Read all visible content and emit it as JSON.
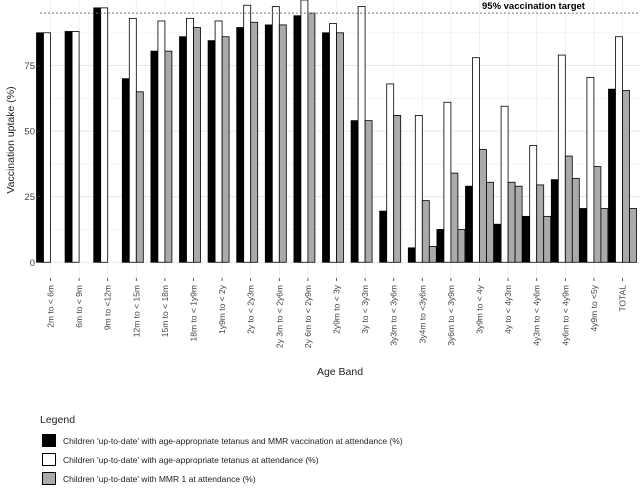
{
  "chart_data": {
    "type": "bar",
    "title": "",
    "xlabel": "Age Band",
    "ylabel": "Vaccination uptake (%)",
    "ylim": [
      0,
      100
    ],
    "yticks": [
      0,
      25,
      50,
      75
    ],
    "grid": true,
    "target": {
      "value": 95,
      "label": "95% vaccination target"
    },
    "categories": [
      "2m to < 6m",
      "6m to < 9m",
      "9m to <12m",
      "12m to < 15m",
      "15m to < 18m",
      "18m to < 1y9m",
      "1y9m to < 2y",
      "2y to < 2y3m",
      "2y 3m to < 2y6m",
      "2y 6m to < 2y9m",
      "2y9m to < 3y",
      "3y to < 3y3m",
      "3y3m to < 3y6m",
      "3y4m to <3y6m",
      "3y6m to < 3y9m",
      "3y9m to < 4y",
      "4y to < 4y3m",
      "4y3m to < 4y6m",
      "4y6m to < 4y9m",
      "4y9m to <5y",
      "TOTAL"
    ],
    "series": [
      {
        "name": "Children 'up-to-date' with age-appropriate tetanus and MMR vaccination at attendance (%)",
        "color": "#000000",
        "values": [
          87.5,
          88,
          97,
          70,
          80.5,
          86,
          84.5,
          89.5,
          90.5,
          94,
          87.5,
          54,
          19.5,
          5.5,
          12.5,
          29,
          14.5,
          17.5,
          31.5,
          20.5,
          66
        ]
      },
      {
        "name": "Children 'up-to-date' with age-appropriate tetanus at attendance (%)",
        "color": "#ffffff",
        "values": [
          87.5,
          88,
          97,
          93,
          92,
          93,
          92,
          98,
          97.5,
          100,
          91,
          97.5,
          68,
          56,
          61,
          78,
          59.5,
          44.5,
          79,
          70.5,
          86
        ]
      },
      {
        "name": "Children 'up-to-date' with MMR 1 at attendance (%)",
        "color": "#aaaaaa",
        "values": [
          null,
          null,
          null,
          65,
          80.5,
          89.5,
          86,
          91.5,
          90.5,
          95,
          87.5,
          54,
          56,
          23.5,
          34,
          43,
          30.5,
          29.5,
          40.5,
          36.5,
          65.5
        ]
      },
      {
        "name": "",
        "color": "#aaaaaa",
        "values": [
          null,
          null,
          null,
          null,
          null,
          null,
          null,
          null,
          null,
          null,
          null,
          null,
          null,
          6,
          12.5,
          30.5,
          29,
          17.5,
          32,
          20.5,
          20.5
        ]
      }
    ]
  },
  "legend": {
    "title": "Legend",
    "items": [
      {
        "label": "Children 'up-to-date' with age-appropriate tetanus and MMR vaccination at attendance (%)",
        "color": "#000000"
      },
      {
        "label": "Children 'up-to-date' with age-appropriate tetanus at attendance (%)",
        "color": "#ffffff"
      },
      {
        "label": "Children 'up-to-date' with MMR 1 at attendance (%)",
        "color": "#aaaaaa"
      }
    ]
  }
}
